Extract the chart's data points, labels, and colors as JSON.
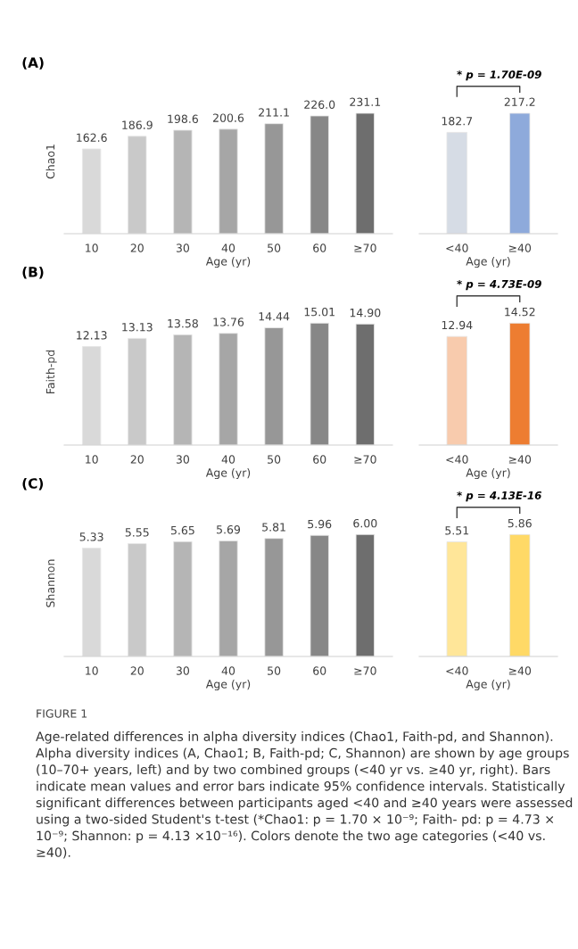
{
  "chart_data": [
    {
      "type": "bar",
      "title": "(A)",
      "categories": [
        "10",
        "20",
        "30",
        "40",
        "50",
        "60",
        "≥70"
      ],
      "xlabel": "Age (yr)",
      "ylabel": "Chao1",
      "values": [
        162.6,
        186.9,
        198.6,
        200.6,
        211.1,
        226.0,
        231.1
      ],
      "colors": [
        "#d9d9d9",
        "#c9c9c9",
        "#b5b5b5",
        "#a6a6a6",
        "#979797",
        "#878787",
        "#6e6e6e"
      ],
      "value_labels": [
        "162.6",
        "186.9",
        "198.6",
        "200.6",
        "211.1",
        "226.0",
        "231.1"
      ],
      "tick_labels": "x",
      "grid": false
    },
    {
      "type": "bar",
      "categories": [
        "<40",
        "≥40"
      ],
      "xlabel": "Age (yr)",
      "values": [
        182.7,
        217.2
      ],
      "colors": [
        "#d6dce5",
        "#8eaadb"
      ],
      "data_labels": true,
      "tick_labels": "x",
      "grid": false,
      "annotations": [
        "* p = 1.70E-09"
      ]
    },
    {
      "type": "bar",
      "title": "(B)",
      "categories": [
        "10",
        "20",
        "30",
        "40",
        "50",
        "60",
        "≥70"
      ],
      "xlabel": "Age (yr)",
      "ylabel": "Faith-pd",
      "values": [
        12.13,
        13.13,
        13.58,
        13.76,
        14.44,
        15.01,
        14.9
      ],
      "colors": [
        "#d9d9d9",
        "#c9c9c9",
        "#b5b5b5",
        "#a6a6a6",
        "#979797",
        "#878787",
        "#6e6e6e"
      ],
      "value_labels": [
        "12.13",
        "13.13",
        "13.58",
        "13.76",
        "14.44",
        "15.01",
        "14.90"
      ],
      "tick_labels": "x",
      "grid": false
    },
    {
      "type": "bar",
      "categories": [
        "<40",
        "≥40"
      ],
      "xlabel": "Age (yr)",
      "values": [
        12.94,
        14.52
      ],
      "colors": [
        "#f8cbad",
        "#ed7d31"
      ],
      "data_labels": true,
      "tick_labels": "x",
      "grid": false,
      "annotations": [
        "* p = 4.73E-09"
      ]
    },
    {
      "type": "bar",
      "title": "(C)",
      "categories": [
        "10",
        "20",
        "30",
        "40",
        "50",
        "60",
        "≥70"
      ],
      "xlabel": "Age (yr)",
      "ylabel": "Shannon",
      "values": [
        5.33,
        5.55,
        5.65,
        5.69,
        5.81,
        5.96,
        6.0
      ],
      "colors": [
        "#d9d9d9",
        "#c9c9c9",
        "#b5b5b5",
        "#a6a6a6",
        "#979797",
        "#878787",
        "#6e6e6e"
      ],
      "value_labels": [
        "5.33",
        "5.55",
        "5.65",
        "5.69",
        "5.81",
        "5.96",
        "6.00"
      ],
      "tick_labels": "x",
      "grid": false
    },
    {
      "type": "bar",
      "categories": [
        "<40",
        "≥40"
      ],
      "xlabel": "Age (yr)",
      "values": [
        5.51,
        5.86
      ],
      "colors": [
        "#ffe699",
        "#ffd966"
      ],
      "data_labels": true,
      "tick_labels": "x",
      "grid": false,
      "annotations": [
        "* p = 4.13E-16"
      ]
    },
    {
      "type": "other",
      "title": "FIGURE 1",
      "annotations": [
        "Age-related differences in alpha diversity indices (Chao1, Faith-pd, and Shannon). Alpha diversity indices (A, Chao1; B, Faith-pd; C, Shannon) are shown by age groups (10–70+ years, left) and by two combined groups (<40 yr vs. ≥40 yr, right). Bars indicate mean values and error bars indicate 95% confidence intervals. Statistically significant differences between participants aged <40 and ≥40 years were assessed using a two-sided Student's t-test (*Chao1: p = 1.70 × 10⁻⁹; Faith- pd: p = 4.73 × 10⁻⁹; Shannon: p = 4.13 ×10⁻¹⁶). Colors denote the two age categories (<40 vs. ≥40)."
      ]
    }
  ]
}
